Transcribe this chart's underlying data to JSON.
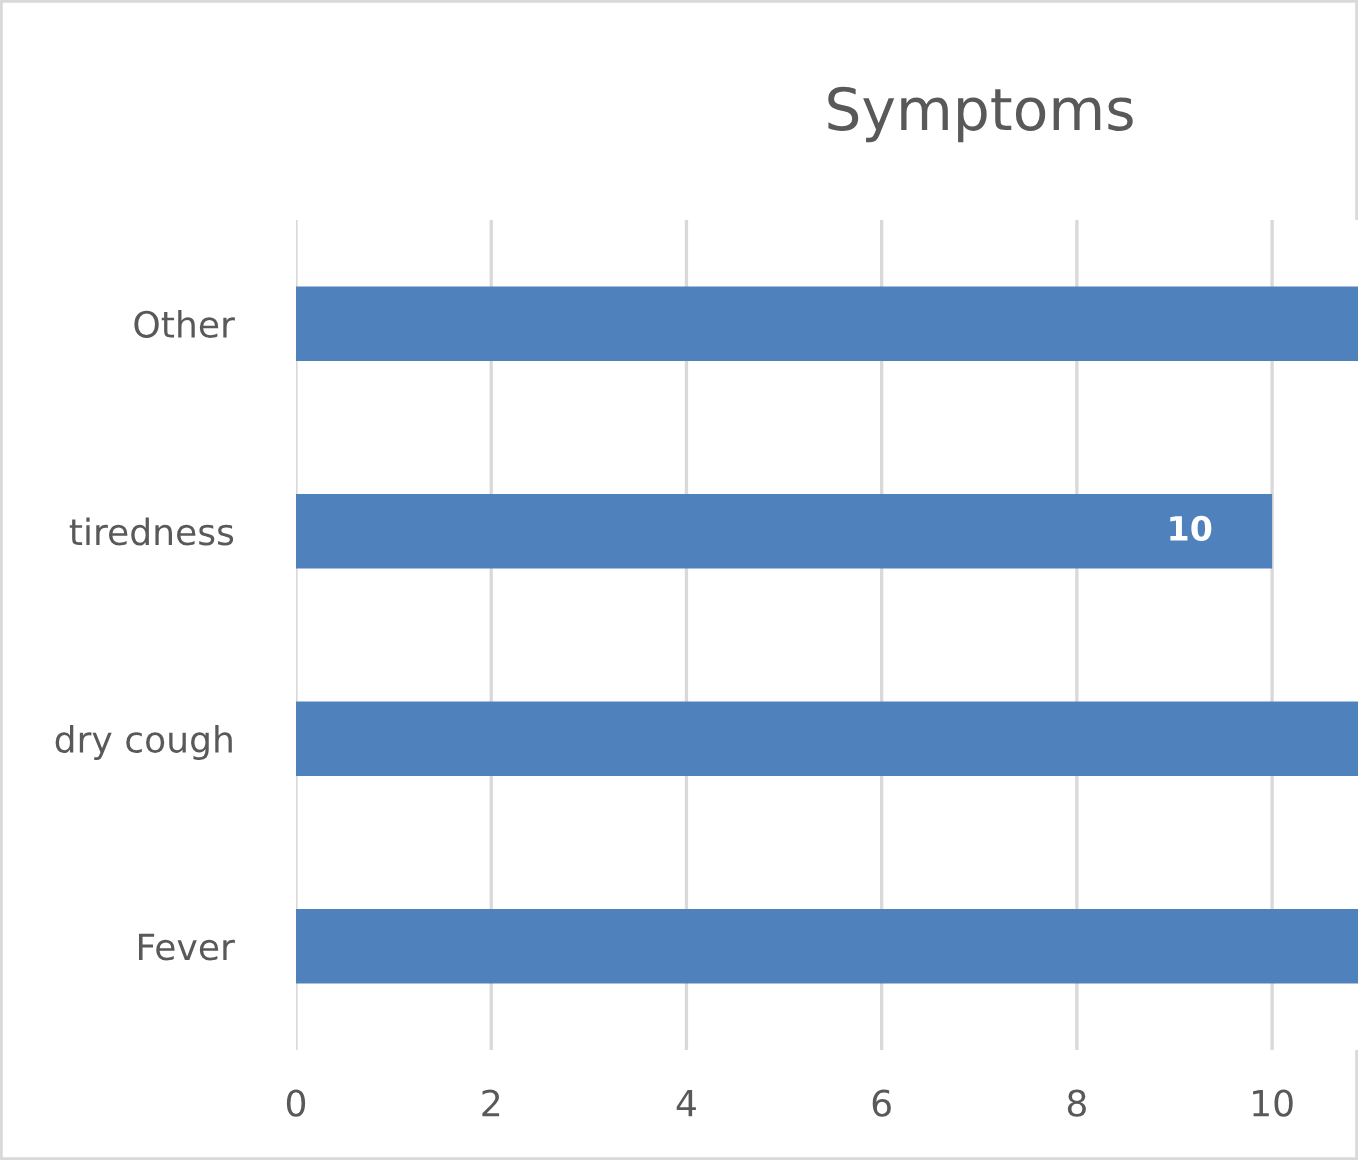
{
  "chart_data": {
    "type": "bar",
    "orientation": "horizontal",
    "title": "Symptoms",
    "categories": [
      "Other",
      "tiredness",
      "dry cough",
      "Fever"
    ],
    "values": [
      10.88,
      10,
      10.88,
      10.88
    ],
    "value_labels": [
      null,
      "10",
      null,
      null
    ],
    "color": "#4f81bd",
    "xlim": [
      0,
      10.88
    ],
    "xticks": [
      0,
      2,
      4,
      6,
      8,
      10
    ],
    "grid": "x"
  }
}
